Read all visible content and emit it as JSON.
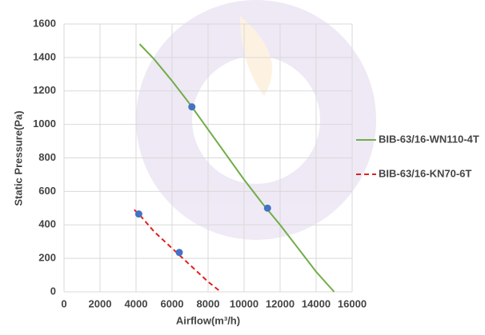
{
  "chart_data": {
    "type": "line",
    "x_label": "Airflow(m³/h)",
    "y_label": "Static Pressure(Pa)",
    "xlim": [
      0,
      16000
    ],
    "xticks": [
      0,
      2000,
      4000,
      6000,
      8000,
      10000,
      12000,
      14000,
      16000
    ],
    "ylim": [
      0,
      1600
    ],
    "yticks": [
      0,
      200,
      400,
      600,
      800,
      1000,
      1200,
      1400,
      1600
    ],
    "grid": true,
    "legend": "right",
    "series": [
      {
        "name": "BIB-63/16-WN110-4T",
        "color": "#70ad47",
        "dashed": false,
        "x": [
          4200,
          5000,
          6000,
          7000,
          8000,
          9000,
          10000,
          11000,
          12000,
          13000,
          14000,
          15000
        ],
        "values": [
          1480,
          1390,
          1260,
          1120,
          970,
          820,
          670,
          530,
          400,
          260,
          120,
          0
        ],
        "points": {
          "color": "#4472c4",
          "x": [
            7100,
            11300
          ],
          "values": [
            1105,
            500
          ]
        }
      },
      {
        "name": "BIB-63/16-KN70-6T",
        "color": "#e02020",
        "dashed": true,
        "x": [
          3900,
          4200,
          5000,
          6000,
          7000,
          8000,
          8700
        ],
        "values": [
          490,
          460,
          360,
          260,
          160,
          60,
          0
        ],
        "points": {
          "color": "#4472c4",
          "x": [
            4150,
            6400
          ],
          "values": [
            465,
            235
          ]
        }
      }
    ]
  }
}
